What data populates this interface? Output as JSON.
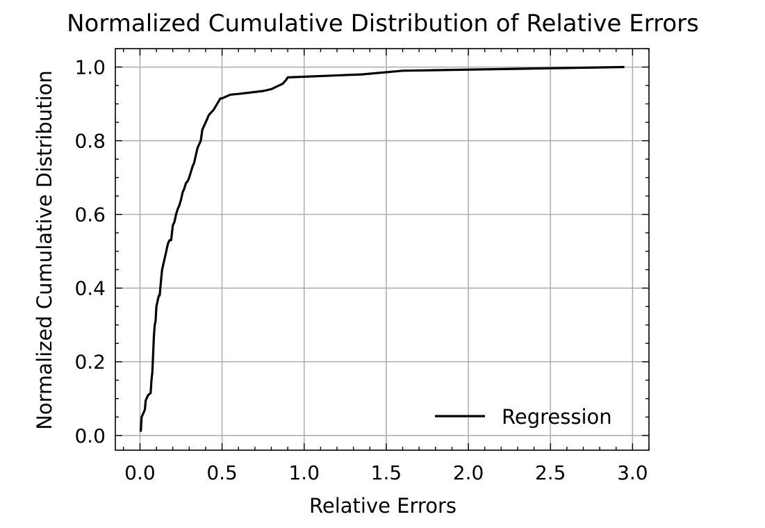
{
  "chart_data": {
    "type": "line",
    "title": "Normalized Cumulative Distribution of Relative Errors",
    "xlabel": "Relative Errors",
    "ylabel": "Normalized Cumulative Distribution",
    "xlim": [
      -0.15,
      3.1
    ],
    "ylim": [
      -0.04,
      1.05
    ],
    "xticks": [
      0.0,
      0.5,
      1.0,
      1.5,
      2.0,
      2.5,
      3.0
    ],
    "xtick_labels": [
      "0.0",
      "0.5",
      "1.0",
      "1.5",
      "2.0",
      "2.5",
      "3.0"
    ],
    "yticks": [
      0.0,
      0.2,
      0.4,
      0.6,
      0.8,
      1.0
    ],
    "ytick_labels": [
      "0.0",
      "0.2",
      "0.4",
      "0.6",
      "0.8",
      "1.0"
    ],
    "grid": true,
    "legend_position": "lower-right",
    "series": [
      {
        "name": "Regression",
        "color": "#000000",
        "x": [
          0.005,
          0.01,
          0.02,
          0.03,
          0.035,
          0.05,
          0.065,
          0.07,
          0.075,
          0.08,
          0.085,
          0.09,
          0.095,
          0.1,
          0.11,
          0.115,
          0.12,
          0.13,
          0.135,
          0.14,
          0.15,
          0.155,
          0.16,
          0.17,
          0.18,
          0.19,
          0.2,
          0.21,
          0.22,
          0.23,
          0.24,
          0.25,
          0.26,
          0.27,
          0.28,
          0.29,
          0.3,
          0.32,
          0.33,
          0.34,
          0.35,
          0.36,
          0.37,
          0.38,
          0.4,
          0.42,
          0.43,
          0.45,
          0.47,
          0.49,
          0.5,
          0.55,
          0.6,
          0.75,
          0.8,
          0.87,
          0.89,
          0.9,
          1.35,
          1.6,
          2.95
        ],
        "y": [
          0.01,
          0.05,
          0.06,
          0.07,
          0.095,
          0.11,
          0.115,
          0.15,
          0.17,
          0.22,
          0.27,
          0.3,
          0.31,
          0.35,
          0.37,
          0.38,
          0.38,
          0.43,
          0.45,
          0.46,
          0.48,
          0.49,
          0.5,
          0.52,
          0.53,
          0.53,
          0.57,
          0.58,
          0.6,
          0.615,
          0.625,
          0.64,
          0.66,
          0.67,
          0.685,
          0.69,
          0.7,
          0.73,
          0.74,
          0.76,
          0.78,
          0.79,
          0.8,
          0.83,
          0.85,
          0.87,
          0.875,
          0.885,
          0.9,
          0.915,
          0.915,
          0.925,
          0.927,
          0.935,
          0.94,
          0.955,
          0.965,
          0.972,
          0.98,
          0.99,
          1.0
        ]
      }
    ]
  }
}
